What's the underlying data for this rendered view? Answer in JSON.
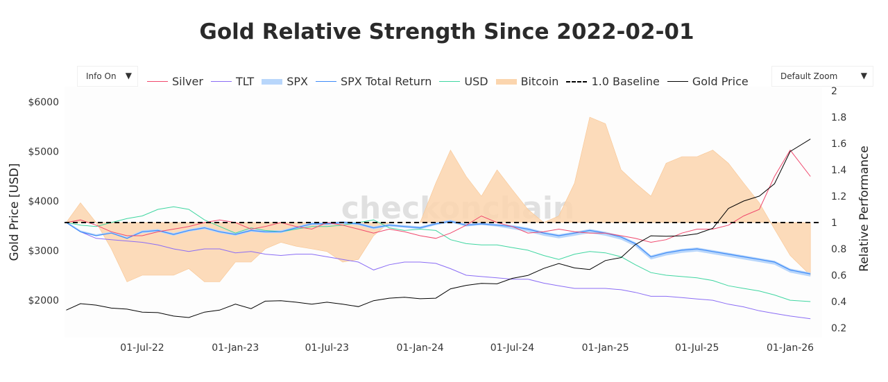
{
  "title": "Gold Relative Strength Since 2022-02-01",
  "controls": {
    "info_label": "Info On",
    "zoom_label": "Default Zoom",
    "dropdown_icon": "triangle-down"
  },
  "watermark": "checkonchain",
  "legend": [
    {
      "name": "Silver",
      "color": "#f0476c",
      "style": "line"
    },
    {
      "name": "TLT",
      "color": "#8a6cf5",
      "style": "line"
    },
    {
      "name": "SPX",
      "color": "#b8d6fb",
      "style": "band"
    },
    {
      "name": "SPX Total Return",
      "color": "#3d8af7",
      "style": "line"
    },
    {
      "name": "USD",
      "color": "#3ed6a0",
      "style": "line"
    },
    {
      "name": "Bitcoin",
      "color": "#fbd5ae",
      "style": "area"
    },
    {
      "name": "1.0 Baseline",
      "color": "#000000",
      "style": "dash"
    },
    {
      "name": "Gold Price",
      "color": "#000000",
      "style": "line"
    }
  ],
  "chart_data": {
    "type": "line",
    "title": "Gold Relative Strength Since 2022-02-01",
    "ylabel_left": "Gold Price [USD]",
    "ylabel_right": "Relative Performance",
    "ylim_left": [
      1450,
      6400
    ],
    "ylim_right": [
      0.12,
      2.02
    ],
    "y_ticks_left": [
      "$2000",
      "$3000",
      "$4000",
      "$5000",
      "$6000"
    ],
    "y_tick_values_left": [
      2000,
      3000,
      4000,
      5000,
      6000
    ],
    "y_ticks_right": [
      "0.2",
      "0.4",
      "0.6",
      "0.8",
      "1",
      "1.2",
      "1.4",
      "1.6",
      "1.8",
      "2"
    ],
    "y_tick_values_right": [
      0.2,
      0.4,
      0.6,
      0.8,
      1,
      1.2,
      1.4,
      1.6,
      1.8,
      2
    ],
    "x_ticks": [
      "01-Jul-22",
      "01-Jan-23",
      "01-Jul-23",
      "01-Jan-24",
      "01-Jul-24",
      "01-Jan-25",
      "01-Jul-25",
      "01-Jan-26"
    ],
    "x_tick_dates": [
      "2022-07-01",
      "2023-01-01",
      "2023-07-01",
      "2024-01-01",
      "2024-07-01",
      "2025-01-01",
      "2025-07-01",
      "2026-01-01"
    ],
    "grid": false,
    "legend_position": "top",
    "x": [
      "2022-02-01",
      "2022-03-01",
      "2022-04-01",
      "2022-05-01",
      "2022-06-01",
      "2022-07-01",
      "2022-08-01",
      "2022-09-01",
      "2022-10-01",
      "2022-11-01",
      "2022-12-01",
      "2023-01-01",
      "2023-02-01",
      "2023-03-01",
      "2023-04-01",
      "2023-05-01",
      "2023-06-01",
      "2023-07-01",
      "2023-08-01",
      "2023-09-01",
      "2023-10-01",
      "2023-11-01",
      "2023-12-01",
      "2024-01-01",
      "2024-02-01",
      "2024-03-01",
      "2024-04-01",
      "2024-05-01",
      "2024-06-01",
      "2024-07-01",
      "2024-08-01",
      "2024-09-01",
      "2024-10-01",
      "2024-11-01",
      "2024-12-01",
      "2025-01-01",
      "2025-02-01",
      "2025-03-01",
      "2025-04-01",
      "2025-05-01",
      "2025-06-01",
      "2025-07-01",
      "2025-08-01",
      "2025-09-01",
      "2025-10-01",
      "2025-11-01",
      "2025-12-01",
      "2026-01-01",
      "2026-02-10"
    ],
    "baseline": 1.0,
    "series": [
      {
        "name": "Gold Price",
        "axis": "left",
        "values": [
          1800,
          1930,
          1900,
          1840,
          1820,
          1760,
          1750,
          1680,
          1650,
          1760,
          1800,
          1920,
          1830,
          1980,
          1990,
          1960,
          1920,
          1960,
          1920,
          1870,
          1990,
          2040,
          2060,
          2030,
          2040,
          2230,
          2300,
          2340,
          2330,
          2440,
          2500,
          2640,
          2740,
          2650,
          2620,
          2800,
          2860,
          3120,
          3300,
          3290,
          3300,
          3340,
          3450,
          3850,
          4000,
          4100,
          4350,
          5000,
          5250
        ]
      },
      {
        "name": "Bitcoin",
        "axis": "right",
        "values": [
          1.0,
          1.15,
          1.0,
          0.8,
          0.55,
          0.6,
          0.6,
          0.6,
          0.65,
          0.55,
          0.55,
          0.7,
          0.7,
          0.8,
          0.85,
          0.82,
          0.8,
          0.78,
          0.7,
          0.72,
          0.9,
          1.0,
          1.0,
          1.0,
          1.3,
          1.55,
          1.35,
          1.2,
          1.4,
          1.25,
          1.1,
          1.0,
          1.05,
          1.3,
          1.8,
          1.75,
          1.4,
          1.3,
          1.2,
          1.45,
          1.5,
          1.5,
          1.55,
          1.45,
          1.3,
          1.15,
          0.95,
          0.75,
          0.6
        ]
      },
      {
        "name": "SPX",
        "axis": "right",
        "values": [
          1.0,
          0.93,
          0.9,
          0.92,
          0.88,
          0.92,
          0.93,
          0.9,
          0.93,
          0.95,
          0.92,
          0.9,
          0.93,
          0.92,
          0.92,
          0.95,
          0.98,
          0.98,
          0.99,
          0.98,
          0.95,
          0.97,
          0.96,
          0.95,
          0.98,
          1.0,
          0.97,
          0.98,
          0.97,
          0.95,
          0.93,
          0.9,
          0.88,
          0.9,
          0.92,
          0.9,
          0.87,
          0.82,
          0.72,
          0.75,
          0.77,
          0.78,
          0.76,
          0.74,
          0.72,
          0.7,
          0.68,
          0.62,
          0.59
        ]
      },
      {
        "name": "SPX Total Return",
        "axis": "right",
        "values": [
          1.0,
          0.93,
          0.9,
          0.92,
          0.88,
          0.93,
          0.94,
          0.91,
          0.94,
          0.96,
          0.93,
          0.91,
          0.94,
          0.93,
          0.93,
          0.96,
          0.99,
          0.99,
          1.0,
          0.99,
          0.96,
          0.98,
          0.97,
          0.96,
          0.99,
          1.01,
          0.98,
          0.99,
          0.98,
          0.97,
          0.95,
          0.92,
          0.9,
          0.92,
          0.94,
          0.92,
          0.89,
          0.84,
          0.74,
          0.77,
          0.79,
          0.8,
          0.78,
          0.76,
          0.74,
          0.72,
          0.7,
          0.64,
          0.61
        ]
      },
      {
        "name": "TLT",
        "axis": "right",
        "values": [
          1.0,
          0.93,
          0.88,
          0.87,
          0.86,
          0.85,
          0.83,
          0.8,
          0.78,
          0.8,
          0.8,
          0.77,
          0.78,
          0.76,
          0.75,
          0.76,
          0.76,
          0.74,
          0.72,
          0.7,
          0.64,
          0.68,
          0.7,
          0.7,
          0.69,
          0.65,
          0.6,
          0.59,
          0.58,
          0.57,
          0.57,
          0.54,
          0.52,
          0.5,
          0.5,
          0.5,
          0.49,
          0.47,
          0.44,
          0.44,
          0.43,
          0.42,
          0.41,
          0.38,
          0.36,
          0.33,
          0.31,
          0.29,
          0.27
        ]
      },
      {
        "name": "USD",
        "axis": "right",
        "values": [
          1.0,
          0.98,
          0.97,
          1.0,
          1.03,
          1.05,
          1.1,
          1.12,
          1.1,
          1.02,
          0.97,
          0.92,
          0.96,
          0.94,
          0.93,
          0.95,
          0.97,
          0.97,
          0.98,
          1.0,
          1.02,
          0.96,
          0.94,
          0.95,
          0.94,
          0.87,
          0.84,
          0.83,
          0.83,
          0.81,
          0.79,
          0.75,
          0.72,
          0.76,
          0.78,
          0.77,
          0.74,
          0.68,
          0.62,
          0.6,
          0.59,
          0.58,
          0.56,
          0.52,
          0.5,
          0.48,
          0.45,
          0.41,
          0.4
        ]
      },
      {
        "name": "Silver",
        "axis": "right",
        "values": [
          1.0,
          1.02,
          0.98,
          0.93,
          0.9,
          0.9,
          0.93,
          0.95,
          0.97,
          1.0,
          1.02,
          1.0,
          0.95,
          0.97,
          1.0,
          0.97,
          0.95,
          1.0,
          0.98,
          0.95,
          0.92,
          0.95,
          0.93,
          0.9,
          0.88,
          0.92,
          0.98,
          1.05,
          1.0,
          0.97,
          0.92,
          0.93,
          0.95,
          0.93,
          0.92,
          0.92,
          0.9,
          0.88,
          0.85,
          0.87,
          0.92,
          0.95,
          0.95,
          0.98,
          1.05,
          1.1,
          1.35,
          1.55,
          1.35
        ]
      }
    ]
  }
}
